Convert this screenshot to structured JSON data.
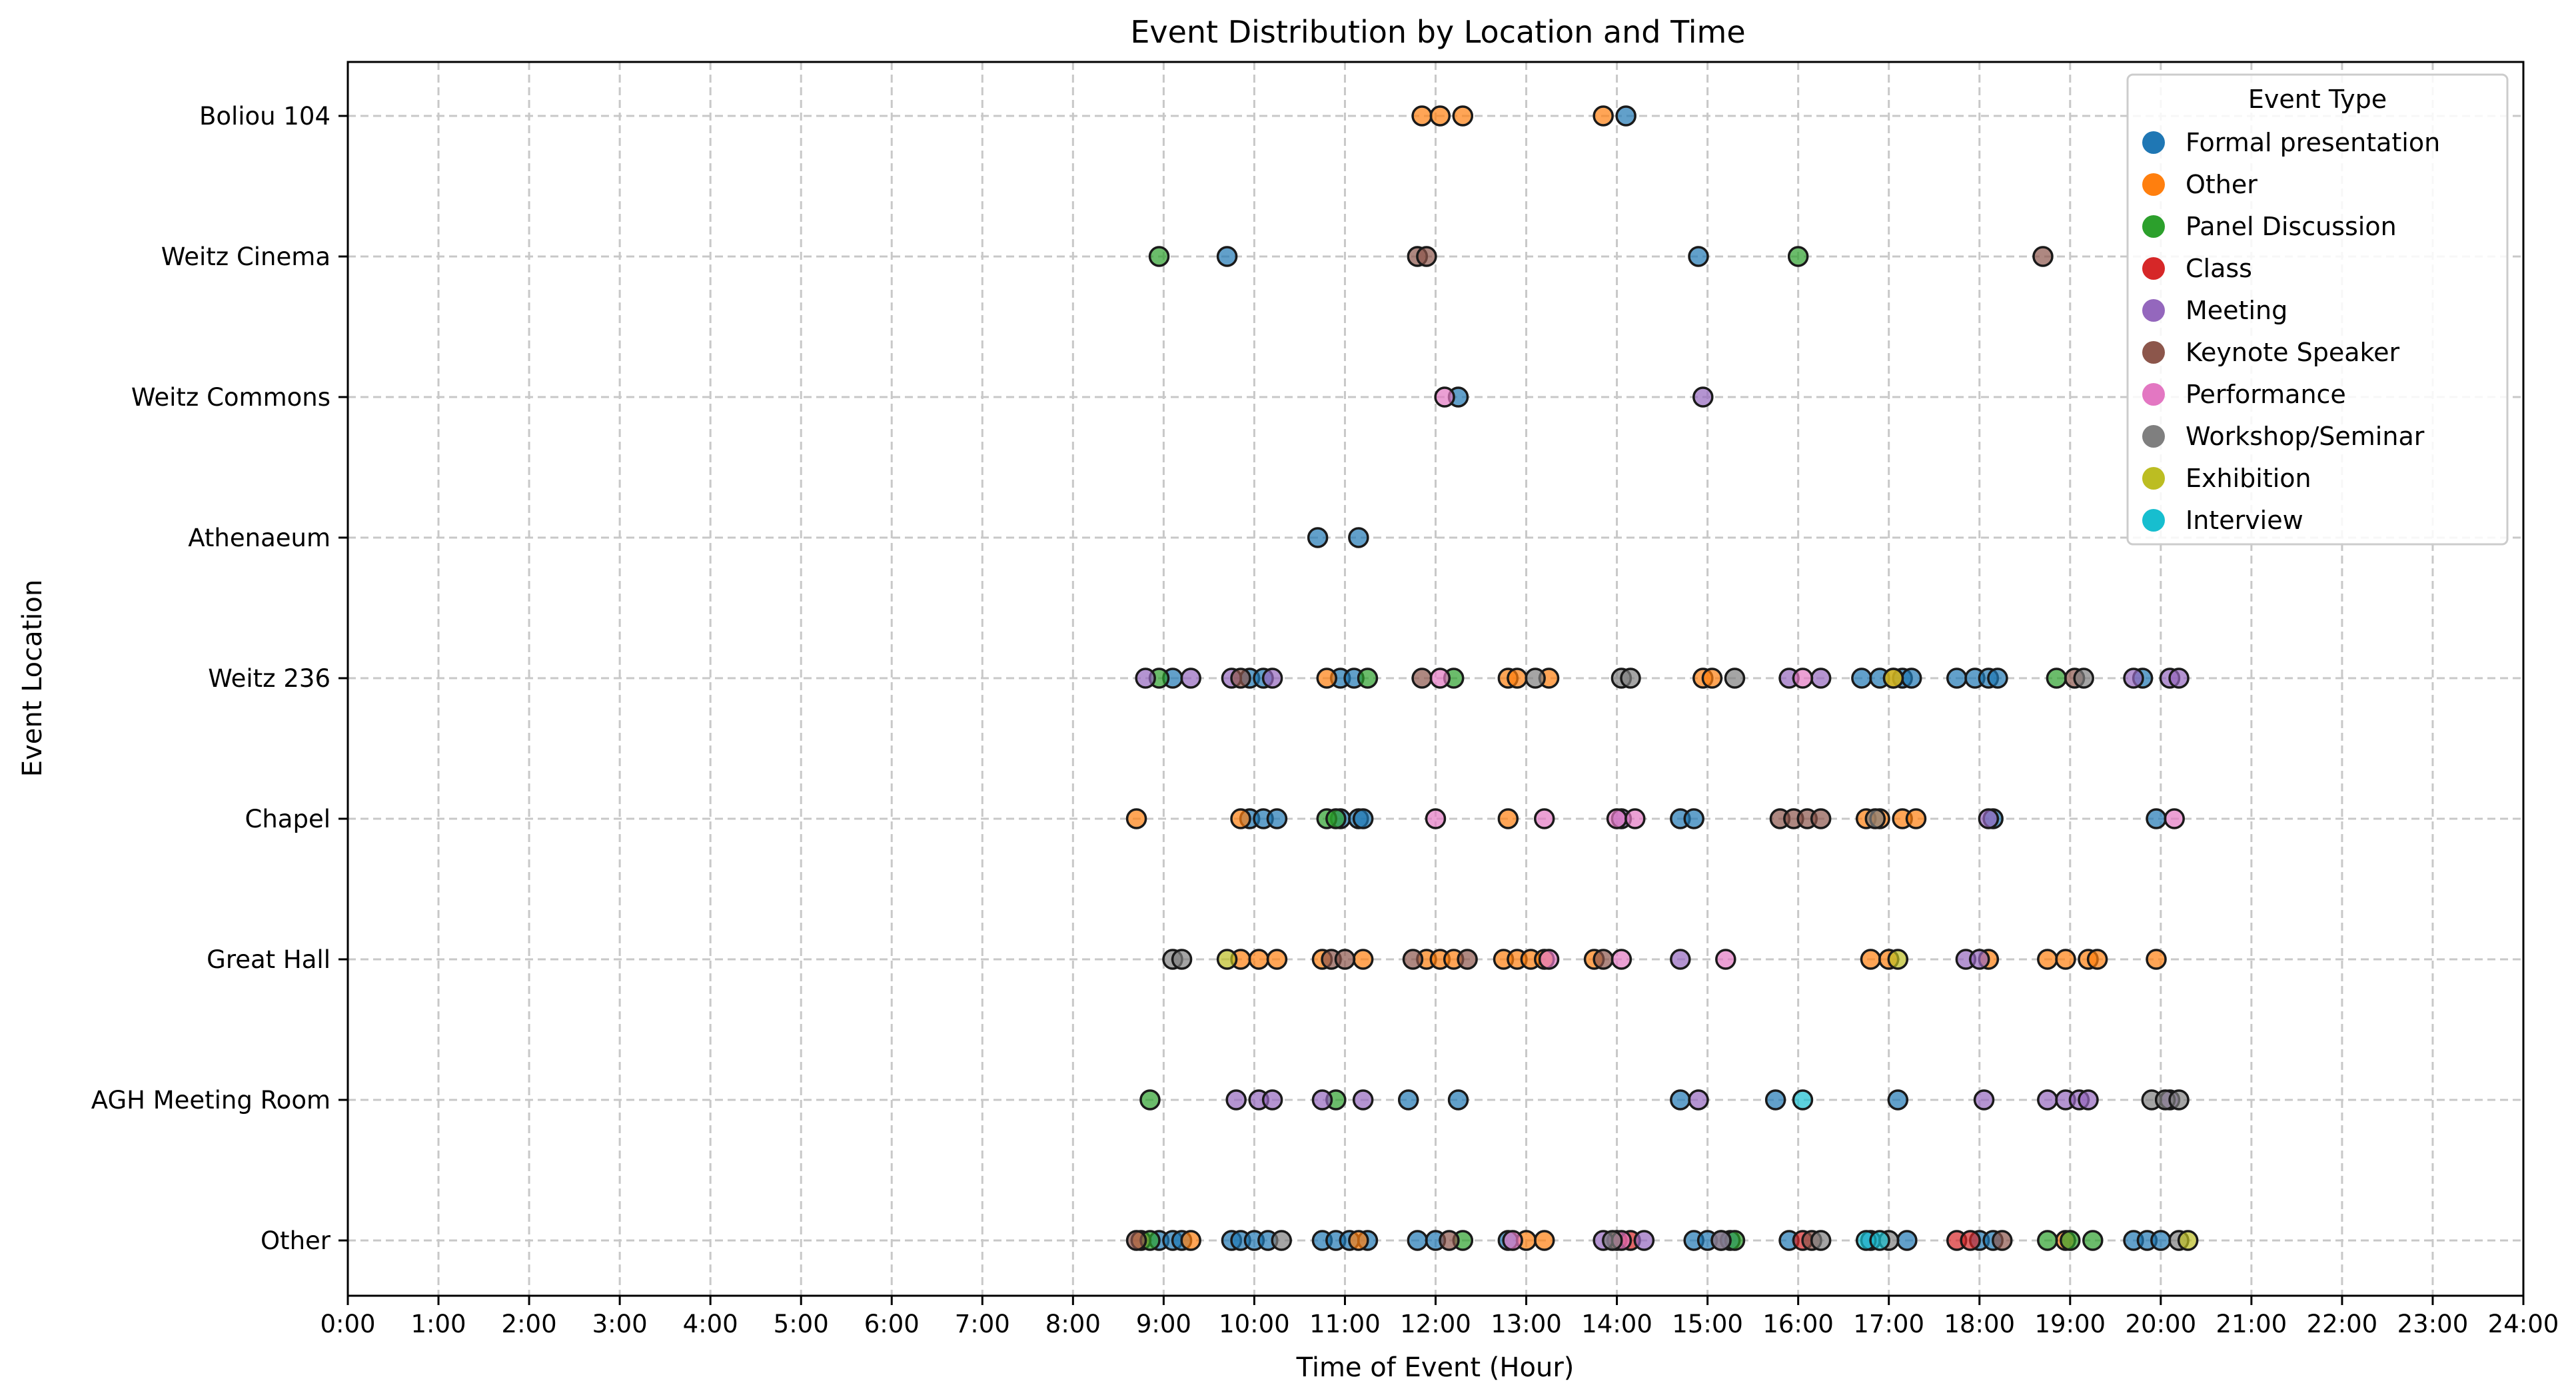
{
  "chart_data": {
    "type": "scatter",
    "title": "Event Distribution by Location and Time",
    "xlabel": "Time of Event (Hour)",
    "ylabel": "Event Location",
    "xlim": [
      0,
      24
    ],
    "x_ticks": [
      "0:00",
      "1:00",
      "2:00",
      "3:00",
      "4:00",
      "5:00",
      "6:00",
      "7:00",
      "8:00",
      "9:00",
      "10:00",
      "11:00",
      "12:00",
      "13:00",
      "14:00",
      "15:00",
      "16:00",
      "17:00",
      "18:00",
      "19:00",
      "20:00",
      "21:00",
      "22:00",
      "23:00",
      "24:00"
    ],
    "categories": [
      "Boliou 104",
      "Weitz Cinema",
      "Weitz Commons",
      "Athenaeum",
      "Weitz 236",
      "Chapel",
      "Great Hall",
      "AGH Meeting Room",
      "Other"
    ],
    "grid": true,
    "legend": {
      "title": "Event Type",
      "placement": "top-right"
    },
    "series": [
      {
        "name": "Formal presentation",
        "color": "#1f77b4",
        "points": [
          [
            "Boliou 104",
            14.1
          ],
          [
            "Weitz Cinema",
            9.7
          ],
          [
            "Weitz Cinema",
            14.9
          ],
          [
            "Weitz Commons",
            12.25
          ],
          [
            "Athenaeum",
            10.7
          ],
          [
            "Athenaeum",
            11.15
          ],
          [
            "Weitz 236",
            9.1
          ],
          [
            "Weitz 236",
            9.95
          ],
          [
            "Weitz 236",
            10.1
          ],
          [
            "Weitz 236",
            10.95
          ],
          [
            "Weitz 236",
            11.1
          ],
          [
            "Weitz 236",
            16.7
          ],
          [
            "Weitz 236",
            16.9
          ],
          [
            "Weitz 236",
            17.15
          ],
          [
            "Weitz 236",
            17.25
          ],
          [
            "Weitz 236",
            17.75
          ],
          [
            "Weitz 236",
            17.95
          ],
          [
            "Weitz 236",
            18.1
          ],
          [
            "Weitz 236",
            18.2
          ],
          [
            "Weitz 236",
            19.8
          ],
          [
            "Chapel",
            9.95
          ],
          [
            "Chapel",
            10.1
          ],
          [
            "Chapel",
            10.25
          ],
          [
            "Chapel",
            10.95
          ],
          [
            "Chapel",
            11.15
          ],
          [
            "Chapel",
            11.2
          ],
          [
            "Chapel",
            14.7
          ],
          [
            "Chapel",
            14.85
          ],
          [
            "Chapel",
            18.15
          ],
          [
            "Chapel",
            19.95
          ],
          [
            "AGH Meeting Room",
            11.7
          ],
          [
            "AGH Meeting Room",
            12.25
          ],
          [
            "AGH Meeting Room",
            14.7
          ],
          [
            "AGH Meeting Room",
            15.75
          ],
          [
            "AGH Meeting Room",
            17.1
          ],
          [
            "Other",
            8.95
          ],
          [
            "Other",
            9.1
          ],
          [
            "Other",
            9.2
          ],
          [
            "Other",
            9.75
          ],
          [
            "Other",
            9.85
          ],
          [
            "Other",
            10.0
          ],
          [
            "Other",
            10.15
          ],
          [
            "Other",
            10.75
          ],
          [
            "Other",
            10.9
          ],
          [
            "Other",
            11.05
          ],
          [
            "Other",
            11.25
          ],
          [
            "Other",
            11.8
          ],
          [
            "Other",
            12.0
          ],
          [
            "Other",
            12.8
          ],
          [
            "Other",
            14.85
          ],
          [
            "Other",
            15.0
          ],
          [
            "Other",
            15.25
          ],
          [
            "Other",
            15.9
          ],
          [
            "Other",
            16.8
          ],
          [
            "Other",
            17.2
          ],
          [
            "Other",
            18.0
          ],
          [
            "Other",
            18.15
          ],
          [
            "Other",
            19.7
          ],
          [
            "Other",
            19.85
          ],
          [
            "Other",
            20.0
          ]
        ]
      },
      {
        "name": "Other",
        "color": "#ff7f0e",
        "points": [
          [
            "Boliou 104",
            11.85
          ],
          [
            "Boliou 104",
            12.05
          ],
          [
            "Boliou 104",
            12.3
          ],
          [
            "Boliou 104",
            13.85
          ],
          [
            "Weitz 236",
            10.8
          ],
          [
            "Weitz 236",
            12.8
          ],
          [
            "Weitz 236",
            12.9
          ],
          [
            "Weitz 236",
            13.25
          ],
          [
            "Weitz 236",
            14.95
          ],
          [
            "Weitz 236",
            15.05
          ],
          [
            "Weitz 236",
            17.05
          ],
          [
            "Chapel",
            8.7
          ],
          [
            "Chapel",
            9.85
          ],
          [
            "Chapel",
            12.8
          ],
          [
            "Chapel",
            16.75
          ],
          [
            "Chapel",
            16.9
          ],
          [
            "Chapel",
            17.15
          ],
          [
            "Chapel",
            17.3
          ],
          [
            "Great Hall",
            9.85
          ],
          [
            "Great Hall",
            10.05
          ],
          [
            "Great Hall",
            10.25
          ],
          [
            "Great Hall",
            10.75
          ],
          [
            "Great Hall",
            11.2
          ],
          [
            "Great Hall",
            11.9
          ],
          [
            "Great Hall",
            12.05
          ],
          [
            "Great Hall",
            12.2
          ],
          [
            "Great Hall",
            12.75
          ],
          [
            "Great Hall",
            12.9
          ],
          [
            "Great Hall",
            13.05
          ],
          [
            "Great Hall",
            13.2
          ],
          [
            "Great Hall",
            13.75
          ],
          [
            "Great Hall",
            16.8
          ],
          [
            "Great Hall",
            17.0
          ],
          [
            "Great Hall",
            18.1
          ],
          [
            "Great Hall",
            18.75
          ],
          [
            "Great Hall",
            18.95
          ],
          [
            "Great Hall",
            19.2
          ],
          [
            "Great Hall",
            19.3
          ],
          [
            "Great Hall",
            19.95
          ],
          [
            "Other",
            8.75
          ],
          [
            "Other",
            9.3
          ],
          [
            "Other",
            11.15
          ],
          [
            "Other",
            13.0
          ],
          [
            "Other",
            13.2
          ],
          [
            "Other",
            18.95
          ]
        ]
      },
      {
        "name": "Panel Discussion",
        "color": "#2ca02c",
        "points": [
          [
            "Weitz Cinema",
            8.95
          ],
          [
            "Weitz Cinema",
            16.0
          ],
          [
            "Weitz 236",
            8.95
          ],
          [
            "Weitz 236",
            11.25
          ],
          [
            "Weitz 236",
            12.2
          ],
          [
            "Weitz 236",
            18.85
          ],
          [
            "Chapel",
            10.8
          ],
          [
            "Chapel",
            10.9
          ],
          [
            "AGH Meeting Room",
            8.85
          ],
          [
            "AGH Meeting Room",
            10.9
          ],
          [
            "Other",
            8.85
          ],
          [
            "Other",
            12.3
          ],
          [
            "Other",
            15.3
          ],
          [
            "Other",
            18.75
          ],
          [
            "Other",
            19.0
          ],
          [
            "Other",
            19.25
          ]
        ]
      },
      {
        "name": "Class",
        "color": "#d62728",
        "points": [
          [
            "Other",
            14.0
          ],
          [
            "Other",
            14.15
          ],
          [
            "Other",
            16.05
          ],
          [
            "Other",
            17.75
          ],
          [
            "Other",
            17.9
          ]
        ]
      },
      {
        "name": "Meeting",
        "color": "#9467bd",
        "points": [
          [
            "Weitz 236",
            8.8
          ],
          [
            "Weitz 236",
            9.3
          ],
          [
            "Weitz 236",
            9.75
          ],
          [
            "Weitz 236",
            10.2
          ],
          [
            "Weitz 236",
            15.9
          ],
          [
            "Weitz 236",
            16.25
          ],
          [
            "Weitz 236",
            19.7
          ],
          [
            "Weitz 236",
            20.1
          ],
          [
            "Weitz 236",
            20.2
          ],
          [
            "Weitz Commons",
            14.95
          ],
          [
            "Chapel",
            14.05
          ],
          [
            "Chapel",
            18.1
          ],
          [
            "Great Hall",
            14.7
          ],
          [
            "Great Hall",
            17.85
          ],
          [
            "Great Hall",
            18.0
          ],
          [
            "AGH Meeting Room",
            9.8
          ],
          [
            "AGH Meeting Room",
            10.05
          ],
          [
            "AGH Meeting Room",
            10.2
          ],
          [
            "AGH Meeting Room",
            10.75
          ],
          [
            "AGH Meeting Room",
            11.2
          ],
          [
            "AGH Meeting Room",
            14.9
          ],
          [
            "AGH Meeting Room",
            18.05
          ],
          [
            "AGH Meeting Room",
            18.75
          ],
          [
            "AGH Meeting Room",
            18.95
          ],
          [
            "AGH Meeting Room",
            19.1
          ],
          [
            "AGH Meeting Room",
            19.2
          ],
          [
            "AGH Meeting Room",
            20.1
          ],
          [
            "Other",
            13.85
          ],
          [
            "Other",
            14.3
          ],
          [
            "Other",
            15.15
          ]
        ]
      },
      {
        "name": "Keynote Speaker",
        "color": "#8c564b",
        "points": [
          [
            "Weitz Cinema",
            11.8
          ],
          [
            "Weitz Cinema",
            11.9
          ],
          [
            "Weitz Cinema",
            18.7
          ],
          [
            "Weitz 236",
            9.85
          ],
          [
            "Weitz 236",
            11.85
          ],
          [
            "Weitz 236",
            19.05
          ],
          [
            "Chapel",
            15.8
          ],
          [
            "Chapel",
            15.95
          ],
          [
            "Chapel",
            16.1
          ],
          [
            "Chapel",
            16.25
          ],
          [
            "Great Hall",
            10.85
          ],
          [
            "Great Hall",
            11.0
          ],
          [
            "Great Hall",
            11.75
          ],
          [
            "Great Hall",
            12.35
          ],
          [
            "Great Hall",
            13.85
          ],
          [
            "Other",
            8.7
          ],
          [
            "Other",
            12.15
          ],
          [
            "Other",
            16.15
          ],
          [
            "Other",
            18.25
          ]
        ]
      },
      {
        "name": "Performance",
        "color": "#e377c2",
        "points": [
          [
            "Weitz Commons",
            12.1
          ],
          [
            "Weitz 236",
            12.05
          ],
          [
            "Weitz 236",
            16.05
          ],
          [
            "Chapel",
            12.0
          ],
          [
            "Chapel",
            13.2
          ],
          [
            "Chapel",
            14.0
          ],
          [
            "Chapel",
            14.2
          ],
          [
            "Chapel",
            20.15
          ],
          [
            "Great Hall",
            13.25
          ],
          [
            "Great Hall",
            14.05
          ],
          [
            "Great Hall",
            15.2
          ],
          [
            "Other",
            12.85
          ],
          [
            "Other",
            14.05
          ]
        ]
      },
      {
        "name": "Workshop/Seminar",
        "color": "#7f7f7f",
        "points": [
          [
            "Weitz 236",
            13.1
          ],
          [
            "Weitz 236",
            14.05
          ],
          [
            "Weitz 236",
            14.15
          ],
          [
            "Weitz 236",
            15.3
          ],
          [
            "Weitz 236",
            19.15
          ],
          [
            "Chapel",
            16.85
          ],
          [
            "Great Hall",
            9.1
          ],
          [
            "Great Hall",
            9.2
          ],
          [
            "AGH Meeting Room",
            19.9
          ],
          [
            "AGH Meeting Room",
            20.05
          ],
          [
            "AGH Meeting Room",
            20.2
          ],
          [
            "Other",
            10.3
          ],
          [
            "Other",
            13.95
          ],
          [
            "Other",
            15.15
          ],
          [
            "Other",
            16.25
          ],
          [
            "Other",
            17.0
          ],
          [
            "Other",
            20.2
          ]
        ]
      },
      {
        "name": "Exhibition",
        "color": "#bcbd22",
        "points": [
          [
            "Weitz 236",
            17.05
          ],
          [
            "Great Hall",
            9.7
          ],
          [
            "Great Hall",
            17.1
          ],
          [
            "Other",
            20.3
          ]
        ]
      },
      {
        "name": "Interview",
        "color": "#17becf",
        "points": [
          [
            "AGH Meeting Room",
            16.05
          ],
          [
            "Other",
            16.75
          ],
          [
            "Other",
            16.9
          ]
        ]
      }
    ]
  }
}
